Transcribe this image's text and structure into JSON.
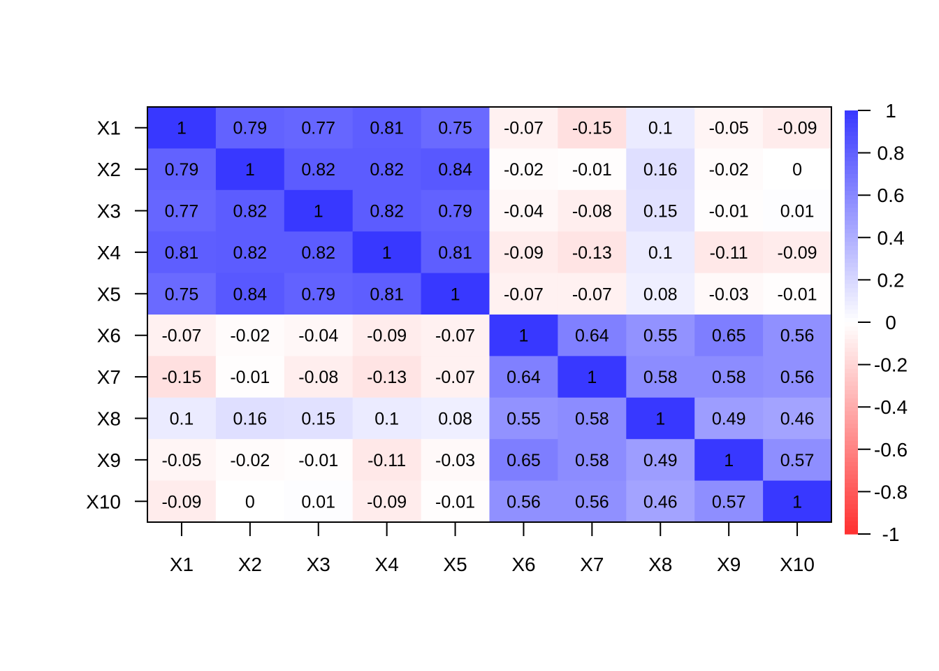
{
  "chart_data": {
    "type": "heatmap",
    "title": "",
    "xlabel": "",
    "ylabel": "",
    "row_labels": [
      "X1",
      "X2",
      "X3",
      "X4",
      "X5",
      "X6",
      "X7",
      "X8",
      "X9",
      "X10"
    ],
    "col_labels": [
      "X1",
      "X2",
      "X3",
      "X4",
      "X5",
      "X6",
      "X7",
      "X8",
      "X9",
      "X10"
    ],
    "values": [
      [
        1,
        0.79,
        0.77,
        0.81,
        0.75,
        -0.07,
        -0.15,
        0.1,
        -0.05,
        -0.09
      ],
      [
        0.79,
        1,
        0.82,
        0.82,
        0.84,
        -0.02,
        -0.01,
        0.16,
        -0.02,
        0
      ],
      [
        0.77,
        0.82,
        1,
        0.82,
        0.79,
        -0.04,
        -0.08,
        0.15,
        -0.01,
        0.01
      ],
      [
        0.81,
        0.82,
        0.82,
        1,
        0.81,
        -0.09,
        -0.13,
        0.1,
        -0.11,
        -0.09
      ],
      [
        0.75,
        0.84,
        0.79,
        0.81,
        1,
        -0.07,
        -0.07,
        0.08,
        -0.03,
        -0.01
      ],
      [
        -0.07,
        -0.02,
        -0.04,
        -0.09,
        -0.07,
        1,
        0.64,
        0.55,
        0.65,
        0.56
      ],
      [
        -0.15,
        -0.01,
        -0.08,
        -0.13,
        -0.07,
        0.64,
        1,
        0.58,
        0.58,
        0.56
      ],
      [
        0.1,
        0.16,
        0.15,
        0.1,
        0.08,
        0.55,
        0.58,
        1,
        0.49,
        0.46
      ],
      [
        -0.05,
        -0.02,
        -0.01,
        -0.11,
        -0.03,
        0.65,
        0.58,
        0.49,
        1,
        0.57
      ],
      [
        -0.09,
        0,
        0.01,
        -0.09,
        -0.01,
        0.56,
        0.56,
        0.46,
        0.57,
        1
      ]
    ],
    "color_scale": {
      "min": -1,
      "max": 1,
      "low_color": "#ff3030",
      "mid_color": "#ffffff",
      "high_color": "#3838ff"
    },
    "legend": {
      "placement": "right",
      "ticks": [
        "1",
        "0.8",
        "0.6",
        "0.4",
        "0.2",
        "0",
        "-0.2",
        "-0.4",
        "-0.6",
        "-0.8",
        "-1"
      ]
    },
    "grid": false
  }
}
